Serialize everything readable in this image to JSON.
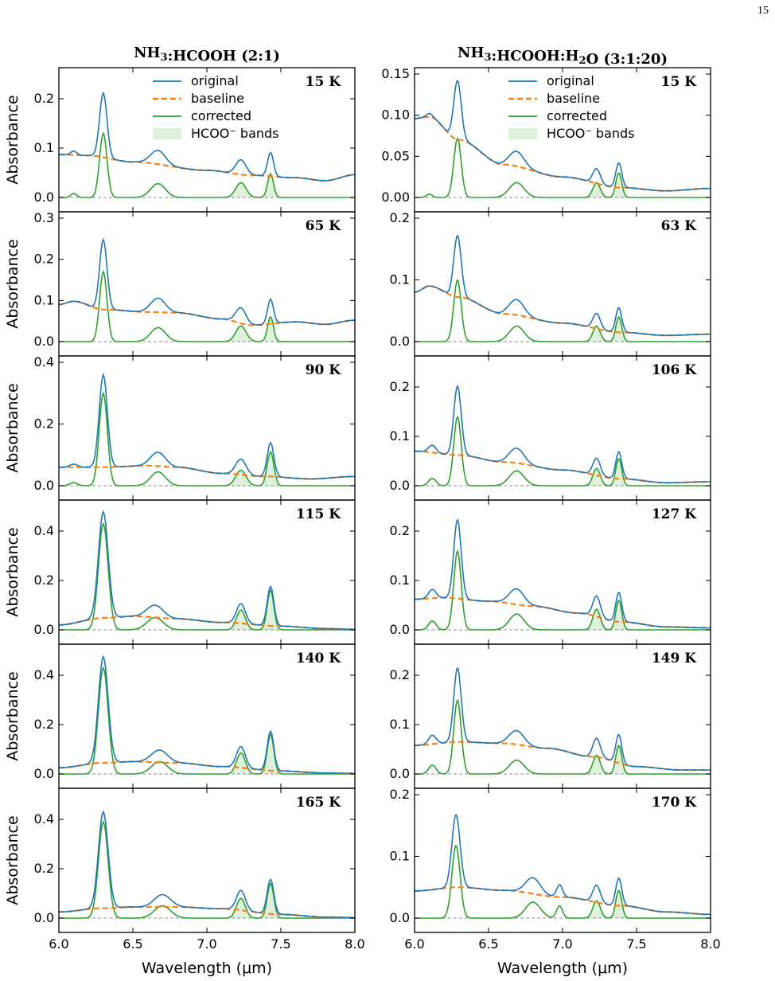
{
  "page_number": "15",
  "colors": {
    "original": "#1f77b4",
    "baseline": "#ff7f0e",
    "corrected": "#2ca02c",
    "bands_fill": "#dff1dc",
    "zero_line": "#888888"
  },
  "chart_data": {
    "type": "line",
    "legend": {
      "placement": "top",
      "entries": [
        "original",
        "baseline",
        "corrected",
        "HCOO⁻ bands"
      ]
    },
    "xlim": [
      6.0,
      8.0
    ],
    "xticks": [
      "6.0",
      "6.5",
      "7.0",
      "7.5",
      "8.0"
    ],
    "xlabel": "Wavelength (μm)",
    "ylabel": "Absorbance",
    "columns": [
      {
        "title_main": "NH",
        "title_sub1": "3",
        "title_rest": ":HCOOH (2:1)",
        "panels": [
          {
            "temp": "15 K",
            "ylim": [
              0,
              0.25
            ],
            "yticks": [
              0,
              0.1,
              0.2
            ],
            "ytick_labels": [
              "0.0",
              "0.1",
              "0.2"
            ],
            "baseline": [
              [
                6.0,
                0.087
              ],
              [
                6.2,
                0.085
              ],
              [
                6.5,
                0.072
              ],
              [
                7.0,
                0.055
              ],
              [
                7.3,
                0.045
              ],
              [
                7.6,
                0.04
              ],
              [
                7.8,
                0.034
              ],
              [
                8.0,
                0.046
              ]
            ],
            "peaks": [
              [
                6.3,
                0.13,
                0.05
              ],
              [
                6.67,
                0.028,
                0.1
              ],
              [
                7.23,
                0.03,
                0.07
              ],
              [
                7.43,
                0.048,
                0.04
              ],
              [
                6.1,
                0.008,
                0.04
              ]
            ]
          },
          {
            "temp": "65 K",
            "ylim": [
              0,
              0.3
            ],
            "yticks": [
              0,
              0.1,
              0.2,
              0.3
            ],
            "ytick_labels": [
              "0.0",
              "0.1",
              "0.2",
              "0.3"
            ],
            "baseline": [
              [
                6.0,
                0.09
              ],
              [
                6.1,
                0.098
              ],
              [
                6.3,
                0.078
              ],
              [
                6.6,
                0.072
              ],
              [
                6.8,
                0.07
              ],
              [
                7.1,
                0.055
              ],
              [
                7.3,
                0.04
              ],
              [
                7.6,
                0.048
              ],
              [
                7.8,
                0.042
              ],
              [
                8.0,
                0.052
              ]
            ],
            "peaks": [
              [
                6.3,
                0.17,
                0.05
              ],
              [
                6.67,
                0.034,
                0.1
              ],
              [
                7.23,
                0.038,
                0.07
              ],
              [
                7.43,
                0.06,
                0.04
              ]
            ]
          },
          {
            "temp": "90 K",
            "ylim": [
              0,
              0.4
            ],
            "yticks": [
              0,
              0.2,
              0.4
            ],
            "ytick_labels": [
              "0.0",
              "0.2",
              "0.4"
            ],
            "baseline": [
              [
                6.0,
                0.06
              ],
              [
                6.3,
                0.06
              ],
              [
                6.6,
                0.065
              ],
              [
                6.8,
                0.06
              ],
              [
                7.1,
                0.04
              ],
              [
                7.4,
                0.03
              ],
              [
                7.7,
                0.022
              ],
              [
                8.0,
                0.03
              ]
            ],
            "peaks": [
              [
                6.3,
                0.3,
                0.055
              ],
              [
                6.67,
                0.045,
                0.1
              ],
              [
                7.23,
                0.05,
                0.07
              ],
              [
                7.43,
                0.11,
                0.045
              ],
              [
                6.1,
                0.01,
                0.05
              ]
            ]
          },
          {
            "temp": "115 K",
            "ylim": [
              0,
              0.5
            ],
            "yticks": [
              0,
              0.2,
              0.4
            ],
            "ytick_labels": [
              "0.0",
              "0.2",
              "0.4"
            ],
            "baseline": [
              [
                6.0,
                0.02
              ],
              [
                6.3,
                0.048
              ],
              [
                6.5,
                0.055
              ],
              [
                6.8,
                0.045
              ],
              [
                7.1,
                0.03
              ],
              [
                7.5,
                0.015
              ],
              [
                7.8,
                0.005
              ],
              [
                8.0,
                0.002
              ]
            ],
            "peaks": [
              [
                6.3,
                0.43,
                0.065
              ],
              [
                6.65,
                0.05,
                0.11
              ],
              [
                7.23,
                0.08,
                0.06
              ],
              [
                7.43,
                0.16,
                0.045
              ]
            ]
          },
          {
            "temp": "140 K",
            "ylim": [
              0,
              0.5
            ],
            "yticks": [
              0,
              0.2,
              0.4
            ],
            "ytick_labels": [
              "0.0",
              "0.2",
              "0.4"
            ],
            "baseline": [
              [
                6.0,
                0.025
              ],
              [
                6.3,
                0.045
              ],
              [
                6.5,
                0.05
              ],
              [
                6.8,
                0.045
              ],
              [
                7.1,
                0.03
              ],
              [
                7.5,
                0.012
              ],
              [
                7.8,
                0.004
              ],
              [
                8.0,
                0.002
              ]
            ],
            "peaks": [
              [
                6.3,
                0.43,
                0.065
              ],
              [
                6.68,
                0.05,
                0.11
              ],
              [
                7.23,
                0.085,
                0.06
              ],
              [
                7.43,
                0.16,
                0.045
              ]
            ]
          },
          {
            "temp": "165 K",
            "ylim": [
              0,
              0.5
            ],
            "yticks": [
              0,
              0.2,
              0.4
            ],
            "ytick_labels": [
              "0.0",
              "0.2",
              "0.4"
            ],
            "baseline": [
              [
                6.0,
                0.025
              ],
              [
                6.3,
                0.04
              ],
              [
                6.5,
                0.045
              ],
              [
                6.8,
                0.045
              ],
              [
                7.1,
                0.038
              ],
              [
                7.5,
                0.015
              ],
              [
                7.8,
                0.004
              ],
              [
                8.0,
                0.002
              ]
            ],
            "peaks": [
              [
                6.3,
                0.39,
                0.065
              ],
              [
                6.7,
                0.05,
                0.11
              ],
              [
                7.23,
                0.08,
                0.06
              ],
              [
                7.43,
                0.14,
                0.045
              ]
            ]
          }
        ]
      },
      {
        "title_main": "NH",
        "title_sub1": "3",
        "title_rest": ":HCOOH:H",
        "title_sub2": "2",
        "title_rest2": "O (3:1:20)",
        "panels": [
          {
            "temp": "15 K",
            "ylim": [
              0,
              0.15
            ],
            "yticks": [
              0,
              0.05,
              0.1,
              0.15
            ],
            "ytick_labels": [
              "0.00",
              "0.05",
              "0.10",
              "0.15"
            ],
            "baseline": [
              [
                6.0,
                0.096
              ],
              [
                6.1,
                0.098
              ],
              [
                6.3,
                0.07
              ],
              [
                6.6,
                0.04
              ],
              [
                7.0,
                0.025
              ],
              [
                7.4,
                0.012
              ],
              [
                7.7,
                0.008
              ],
              [
                8.0,
                0.011
              ]
            ],
            "peaks": [
              [
                6.29,
                0.072,
                0.05
              ],
              [
                6.69,
                0.018,
                0.1
              ],
              [
                7.23,
                0.018,
                0.05
              ],
              [
                7.38,
                0.03,
                0.04
              ],
              [
                6.1,
                0.004,
                0.04
              ]
            ]
          },
          {
            "temp": "63 K",
            "ylim": [
              0,
              0.2
            ],
            "yticks": [
              0,
              0.1,
              0.2
            ],
            "ytick_labels": [
              "0.0",
              "0.1",
              "0.2"
            ],
            "baseline": [
              [
                6.0,
                0.08
              ],
              [
                6.1,
                0.09
              ],
              [
                6.3,
                0.072
              ],
              [
                6.6,
                0.045
              ],
              [
                7.0,
                0.03
              ],
              [
                7.4,
                0.015
              ],
              [
                7.7,
                0.01
              ],
              [
                8.0,
                0.012
              ]
            ],
            "peaks": [
              [
                6.29,
                0.1,
                0.05
              ],
              [
                6.69,
                0.025,
                0.1
              ],
              [
                7.23,
                0.025,
                0.05
              ],
              [
                7.38,
                0.04,
                0.04
              ]
            ]
          },
          {
            "temp": "106 K",
            "ylim": [
              0,
              0.25
            ],
            "yticks": [
              0,
              0.1,
              0.2
            ],
            "ytick_labels": [
              "0.0",
              "0.1",
              "0.2"
            ],
            "baseline": [
              [
                6.0,
                0.07
              ],
              [
                6.3,
                0.062
              ],
              [
                6.6,
                0.048
              ],
              [
                7.0,
                0.032
              ],
              [
                7.4,
                0.014
              ],
              [
                7.7,
                0.006
              ],
              [
                8.0,
                0.008
              ]
            ],
            "peaks": [
              [
                6.29,
                0.14,
                0.05
              ],
              [
                6.69,
                0.03,
                0.1
              ],
              [
                7.23,
                0.035,
                0.05
              ],
              [
                7.38,
                0.055,
                0.04
              ],
              [
                6.12,
                0.015,
                0.05
              ]
            ]
          },
          {
            "temp": "127 K",
            "ylim": [
              0,
              0.25
            ],
            "yticks": [
              0,
              0.1,
              0.2
            ],
            "ytick_labels": [
              "0.0",
              "0.1",
              "0.2"
            ],
            "baseline": [
              [
                6.0,
                0.062
              ],
              [
                6.2,
                0.065
              ],
              [
                6.5,
                0.058
              ],
              [
                6.8,
                0.048
              ],
              [
                7.1,
                0.034
              ],
              [
                7.4,
                0.016
              ],
              [
                7.7,
                0.006
              ],
              [
                8.0,
                0.004
              ]
            ],
            "peaks": [
              [
                6.29,
                0.16,
                0.05
              ],
              [
                6.69,
                0.032,
                0.1
              ],
              [
                7.23,
                0.042,
                0.05
              ],
              [
                7.38,
                0.06,
                0.04
              ],
              [
                6.12,
                0.018,
                0.05
              ]
            ]
          },
          {
            "temp": "149 K",
            "ylim": [
              0,
              0.25
            ],
            "yticks": [
              0,
              0.1,
              0.2
            ],
            "ytick_labels": [
              "0.0",
              "0.1",
              "0.2"
            ],
            "baseline": [
              [
                6.0,
                0.058
              ],
              [
                6.3,
                0.065
              ],
              [
                6.6,
                0.062
              ],
              [
                6.9,
                0.052
              ],
              [
                7.2,
                0.035
              ],
              [
                7.5,
                0.015
              ],
              [
                7.8,
                0.008
              ],
              [
                8.0,
                0.008
              ]
            ],
            "peaks": [
              [
                6.29,
                0.15,
                0.05
              ],
              [
                6.69,
                0.028,
                0.1
              ],
              [
                7.23,
                0.038,
                0.05
              ],
              [
                7.38,
                0.058,
                0.04
              ],
              [
                6.12,
                0.018,
                0.05
              ]
            ]
          },
          {
            "temp": "170 K",
            "ylim": [
              0,
              0.2
            ],
            "yticks": [
              0,
              0.1,
              0.2
            ],
            "ytick_labels": [
              "0.0",
              "0.1",
              "0.2"
            ],
            "baseline": [
              [
                6.0,
                0.044
              ],
              [
                6.3,
                0.05
              ],
              [
                6.6,
                0.045
              ],
              [
                7.0,
                0.034
              ],
              [
                7.4,
                0.02
              ],
              [
                7.7,
                0.01
              ],
              [
                8.0,
                0.006
              ]
            ],
            "peaks": [
              [
                6.28,
                0.118,
                0.055
              ],
              [
                6.8,
                0.026,
                0.1
              ],
              [
                6.98,
                0.02,
                0.04
              ],
              [
                7.23,
                0.028,
                0.05
              ],
              [
                7.38,
                0.045,
                0.04
              ]
            ]
          }
        ]
      }
    ]
  }
}
